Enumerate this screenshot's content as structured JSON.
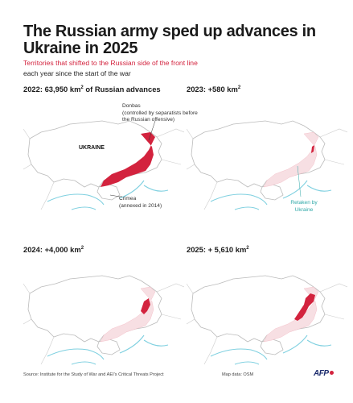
{
  "header": {
    "title": "The Russian army sped up advances in Ukraine in 2025",
    "subtitle_red": "Territories that shifted to the Russian side of the front line",
    "subtitle_black": "each year since the start of the war"
  },
  "panels": [
    {
      "id": "2022",
      "label_prefix": "2022: 63,950 km",
      "label_sup": "2",
      "label_suffix": " of Russian advances",
      "advance_km2": 63950
    },
    {
      "id": "2023",
      "label_prefix": "2023: +580 km",
      "label_sup": "2",
      "label_suffix": "",
      "advance_km2": 580
    },
    {
      "id": "2024",
      "label_prefix": "2024: +4,000 km",
      "label_sup": "2",
      "label_suffix": "",
      "advance_km2": 4000
    },
    {
      "id": "2025",
      "label_prefix": "2025: + 5,610 km",
      "label_sup": "2",
      "label_suffix": "",
      "advance_km2": 5610
    }
  ],
  "annotations": {
    "donbas_line1": "Donbas",
    "donbas_line2": "(controlled by separatists before",
    "donbas_line3": "the Russian offensive)",
    "ukraine": "UKRAINE",
    "crimea_line1": "Crimea",
    "crimea_line2": "(annexed in 2014)",
    "retaken_line1": "Retaken by",
    "retaken_line2": "Ukraine"
  },
  "footer": {
    "source": "Source: Institute for the Study of War and AEI's Critical Threats Project",
    "map_data": "Map data: OSM",
    "logo": "AFP"
  },
  "colors": {
    "advance": "#d3233e",
    "previous": "#f7dfe3",
    "border": "#bbbbbb",
    "water": "#7fd0e0",
    "retaken": "#2fa8a8"
  }
}
